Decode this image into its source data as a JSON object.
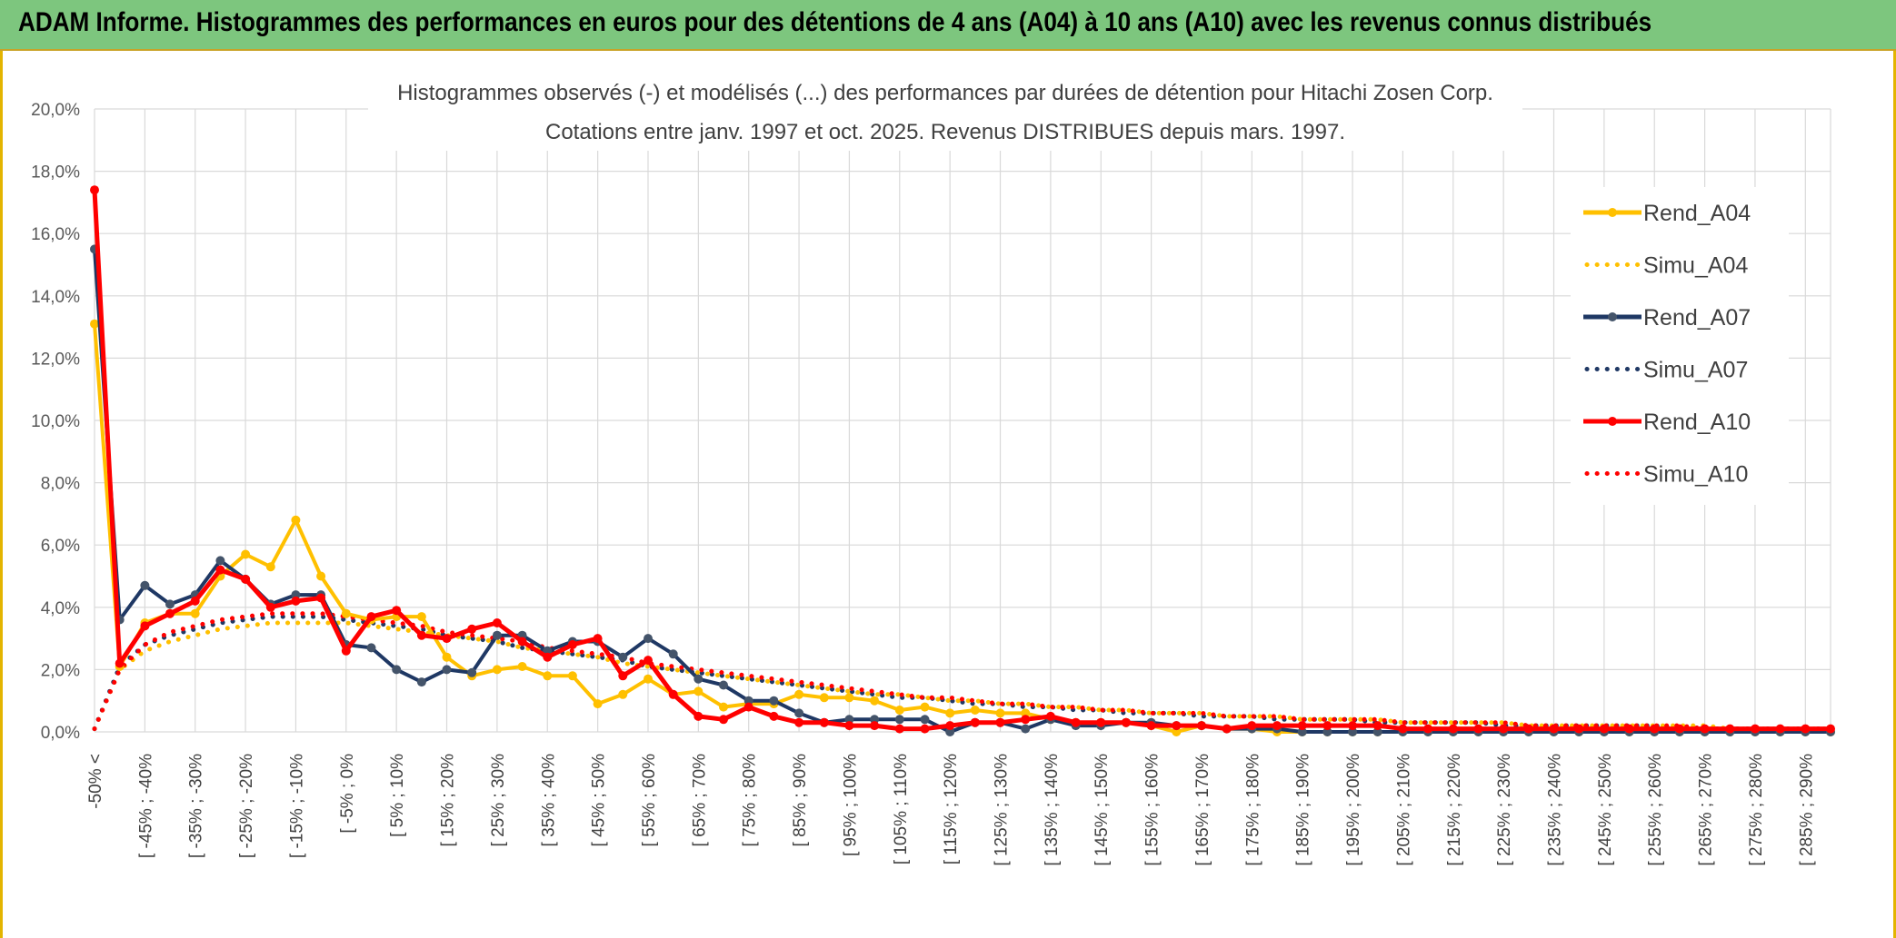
{
  "header": {
    "title": "ADAM Informe. Histogrammes des performances en euros pour des détentions de 4 ans (A04) à 10 ans (A10) avec les revenus connus distribués"
  },
  "chart_data": {
    "type": "line",
    "title": "Histogrammes observés (-) et modélisés (...) des performances par durées de détention pour Hitachi Zosen Corp.",
    "subtitle": "Cotations entre janv. 1997 et oct. 2025. Revenus DISTRIBUES depuis mars. 1997.",
    "xlabel": "",
    "ylabel": "",
    "ylim": [
      0,
      20
    ],
    "y_ticks": [
      "0,0%",
      "2,0%",
      "4,0%",
      "6,0%",
      "8,0%",
      "10,0%",
      "12,0%",
      "14,0%",
      "16,0%",
      "18,0%",
      "20,0%"
    ],
    "grid": true,
    "legend_position": "right",
    "x_tick_labels": [
      "-50% <",
      "[ -45% ; -40%",
      "[ -35% ; -30%",
      "[ -25% ; -20%",
      "[ -15% ; -10%",
      "[ -5% ; 0%",
      "[ 5% ; 10%",
      "[ 15% ; 20%",
      "[ 25% ; 30%",
      "[ 35% ; 40%",
      "[ 45% ; 50%",
      "[ 55% ; 60%",
      "[ 65% ; 70%",
      "[ 75% ; 80%",
      "[ 85% ; 90%",
      "[ 95% ; 100%",
      "[ 105% ; 110%",
      "[ 115% ; 120%",
      "[ 125% ; 130%",
      "[ 135% ; 140%",
      "[ 145% ; 150%",
      "[ 155% ; 160%",
      "[ 165% ; 170%",
      "[ 175% ; 180%",
      "[ 185% ; 190%",
      "[ 195% ; 200%",
      "[ 205% ; 210%",
      "[ 215% ; 220%",
      "[ 225% ; 230%",
      "[ 235% ; 240%",
      "[ 245% ; 250%",
      "[ 255% ; 260%",
      "[ 265% ; 270%",
      "[ 275% ; 280%",
      "[ 285% ; 290%"
    ],
    "series": [
      {
        "name": "Rend_A04",
        "style": "solid",
        "color": "#ffc000",
        "values": [
          13.1,
          2.1,
          3.5,
          3.8,
          3.8,
          5.0,
          5.7,
          5.3,
          6.8,
          5.0,
          3.8,
          3.6,
          3.7,
          3.7,
          2.4,
          1.8,
          2.0,
          2.1,
          1.8,
          1.8,
          0.9,
          1.2,
          1.7,
          1.2,
          1.3,
          0.8,
          0.9,
          0.9,
          1.2,
          1.1,
          1.1,
          1.0,
          0.7,
          0.8,
          0.6,
          0.7,
          0.6,
          0.6,
          0.4,
          0.3,
          0.3,
          0.3,
          0.2,
          0.0,
          0.2,
          0.1,
          0.1,
          0.0,
          0.0,
          0.0,
          0.0,
          0.0,
          0.0,
          0.0,
          0.0,
          0.0,
          0.0,
          0.0,
          0.0,
          0.0,
          0.0,
          0.0,
          0.0,
          0.0,
          0.0,
          0.0,
          0.0,
          0.0,
          0.0,
          0.0
        ]
      },
      {
        "name": "Simu_A04",
        "style": "dotted",
        "color": "#ffc000",
        "values": [
          0.1,
          2.0,
          2.6,
          2.9,
          3.1,
          3.3,
          3.4,
          3.5,
          3.5,
          3.5,
          3.5,
          3.4,
          3.3,
          3.2,
          3.1,
          3.0,
          2.9,
          2.7,
          2.6,
          2.5,
          2.4,
          2.2,
          2.1,
          2.0,
          1.9,
          1.8,
          1.7,
          1.6,
          1.5,
          1.4,
          1.3,
          1.2,
          1.2,
          1.1,
          1.0,
          1.0,
          0.9,
          0.9,
          0.8,
          0.8,
          0.7,
          0.7,
          0.6,
          0.6,
          0.6,
          0.5,
          0.5,
          0.5,
          0.4,
          0.4,
          0.4,
          0.4,
          0.3,
          0.3,
          0.3,
          0.3,
          0.3,
          0.2,
          0.2,
          0.2,
          0.2,
          0.2,
          0.2,
          0.2,
          0.2,
          0.1,
          0.1,
          0.1,
          0.1,
          0.1
        ]
      },
      {
        "name": "Rend_A07",
        "style": "solid",
        "color": "#1f3864",
        "values": [
          15.5,
          3.6,
          4.7,
          4.1,
          4.4,
          5.5,
          4.9,
          4.1,
          4.4,
          4.4,
          2.8,
          2.7,
          2.0,
          1.6,
          2.0,
          1.9,
          3.1,
          3.1,
          2.6,
          2.9,
          2.9,
          2.4,
          3.0,
          2.5,
          1.7,
          1.5,
          1.0,
          1.0,
          0.6,
          0.3,
          0.4,
          0.4,
          0.4,
          0.4,
          0.0,
          0.3,
          0.3,
          0.1,
          0.4,
          0.2,
          0.2,
          0.3,
          0.3,
          0.2,
          0.2,
          0.1,
          0.1,
          0.1,
          0.0,
          0.0,
          0.0,
          0.0,
          0.0,
          0.0,
          0.0,
          0.0,
          0.0,
          0.0,
          0.0,
          0.0,
          0.0,
          0.0,
          0.0,
          0.0,
          0.0,
          0.0,
          0.0,
          0.0,
          0.0,
          0.0
        ]
      },
      {
        "name": "Simu_A07",
        "style": "dotted",
        "color": "#1f3864",
        "values": [
          0.1,
          2.1,
          2.8,
          3.1,
          3.3,
          3.5,
          3.6,
          3.7,
          3.7,
          3.7,
          3.6,
          3.5,
          3.4,
          3.3,
          3.1,
          3.0,
          2.9,
          2.7,
          2.6,
          2.5,
          2.4,
          2.3,
          2.1,
          2.0,
          1.9,
          1.8,
          1.7,
          1.6,
          1.5,
          1.4,
          1.3,
          1.2,
          1.1,
          1.1,
          1.0,
          0.9,
          0.9,
          0.8,
          0.8,
          0.7,
          0.7,
          0.6,
          0.6,
          0.6,
          0.5,
          0.5,
          0.5,
          0.4,
          0.4,
          0.4,
          0.4,
          0.3,
          0.3,
          0.3,
          0.3,
          0.3,
          0.2,
          0.2,
          0.2,
          0.2,
          0.2,
          0.2,
          0.2,
          0.1,
          0.1,
          0.1,
          0.1,
          0.1,
          0.1,
          0.1
        ]
      },
      {
        "name": "Rend_A10",
        "style": "solid",
        "color": "#ff0000",
        "values": [
          17.4,
          2.2,
          3.4,
          3.8,
          4.2,
          5.2,
          4.9,
          4.0,
          4.2,
          4.3,
          2.6,
          3.7,
          3.9,
          3.1,
          3.0,
          3.3,
          3.5,
          2.9,
          2.4,
          2.8,
          3.0,
          1.8,
          2.3,
          1.2,
          0.5,
          0.4,
          0.8,
          0.5,
          0.3,
          0.3,
          0.2,
          0.2,
          0.1,
          0.1,
          0.2,
          0.3,
          0.3,
          0.4,
          0.5,
          0.3,
          0.3,
          0.3,
          0.2,
          0.2,
          0.2,
          0.1,
          0.2,
          0.2,
          0.2,
          0.2,
          0.2,
          0.2,
          0.1,
          0.1,
          0.1,
          0.1,
          0.1,
          0.1,
          0.1,
          0.1,
          0.1,
          0.1,
          0.1,
          0.1,
          0.1,
          0.1,
          0.1,
          0.1,
          0.1,
          0.1
        ]
      },
      {
        "name": "Simu_A10",
        "style": "dotted",
        "color": "#ff0000",
        "values": [
          0.1,
          2.0,
          2.8,
          3.2,
          3.4,
          3.6,
          3.7,
          3.8,
          3.8,
          3.8,
          3.7,
          3.6,
          3.5,
          3.4,
          3.2,
          3.1,
          3.0,
          2.9,
          2.7,
          2.6,
          2.5,
          2.4,
          2.2,
          2.1,
          2.0,
          1.9,
          1.8,
          1.7,
          1.6,
          1.5,
          1.4,
          1.3,
          1.2,
          1.1,
          1.1,
          1.0,
          0.9,
          0.9,
          0.8,
          0.8,
          0.7,
          0.7,
          0.6,
          0.6,
          0.6,
          0.5,
          0.5,
          0.5,
          0.4,
          0.4,
          0.4,
          0.4,
          0.3,
          0.3,
          0.3,
          0.3,
          0.3,
          0.2,
          0.2,
          0.2,
          0.2,
          0.2,
          0.2,
          0.2,
          0.1,
          0.1,
          0.1,
          0.1,
          0.1,
          0.1
        ]
      }
    ]
  }
}
